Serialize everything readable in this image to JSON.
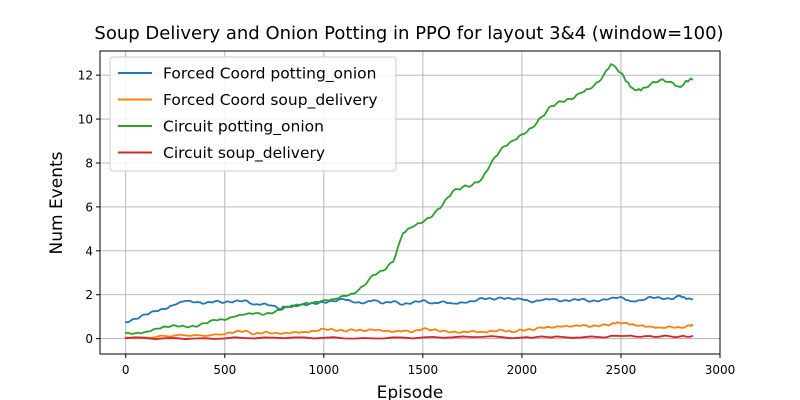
{
  "chart_data": {
    "type": "line",
    "title": "Soup Delivery and Onion Potting in PPO for layout 3&4 (window=100)",
    "xlabel": "Episode",
    "ylabel": "Num Events",
    "xlim": [
      -130,
      3000
    ],
    "ylim": [
      -0.7,
      13.1
    ],
    "xticks": [
      0,
      500,
      1000,
      1500,
      2000,
      2500,
      3000
    ],
    "yticks": [
      0,
      2,
      4,
      6,
      8,
      10,
      12
    ],
    "grid": true,
    "legend_position": "top-left",
    "series": [
      {
        "name": "Forced Coord potting_onion",
        "color": "#1f77b4",
        "points": [
          [
            0,
            0.75
          ],
          [
            50,
            0.9
          ],
          [
            100,
            1.1
          ],
          [
            150,
            1.25
          ],
          [
            200,
            1.35
          ],
          [
            250,
            1.55
          ],
          [
            300,
            1.72
          ],
          [
            350,
            1.65
          ],
          [
            400,
            1.6
          ],
          [
            450,
            1.7
          ],
          [
            500,
            1.65
          ],
          [
            550,
            1.7
          ],
          [
            600,
            1.75
          ],
          [
            650,
            1.55
          ],
          [
            700,
            1.6
          ],
          [
            740,
            1.5
          ],
          [
            780,
            1.35
          ],
          [
            800,
            1.45
          ],
          [
            850,
            1.5
          ],
          [
            900,
            1.55
          ],
          [
            950,
            1.6
          ],
          [
            1000,
            1.65
          ],
          [
            1050,
            1.7
          ],
          [
            1100,
            1.8
          ],
          [
            1150,
            1.65
          ],
          [
            1200,
            1.6
          ],
          [
            1250,
            1.75
          ],
          [
            1300,
            1.6
          ],
          [
            1350,
            1.7
          ],
          [
            1400,
            1.55
          ],
          [
            1450,
            1.65
          ],
          [
            1500,
            1.75
          ],
          [
            1550,
            1.6
          ],
          [
            1600,
            1.7
          ],
          [
            1650,
            1.6
          ],
          [
            1700,
            1.65
          ],
          [
            1750,
            1.7
          ],
          [
            1800,
            1.85
          ],
          [
            1850,
            1.8
          ],
          [
            1900,
            1.85
          ],
          [
            1950,
            1.8
          ],
          [
            2000,
            1.8
          ],
          [
            2050,
            1.65
          ],
          [
            2100,
            1.75
          ],
          [
            2150,
            1.8
          ],
          [
            2200,
            1.7
          ],
          [
            2250,
            1.75
          ],
          [
            2300,
            1.8
          ],
          [
            2350,
            1.7
          ],
          [
            2400,
            1.75
          ],
          [
            2450,
            1.85
          ],
          [
            2500,
            1.9
          ],
          [
            2550,
            1.7
          ],
          [
            2600,
            1.75
          ],
          [
            2650,
            1.9
          ],
          [
            2700,
            1.85
          ],
          [
            2750,
            1.8
          ],
          [
            2800,
            1.95
          ],
          [
            2830,
            1.8
          ],
          [
            2860,
            1.8
          ]
        ]
      },
      {
        "name": "Forced Coord soup_delivery",
        "color": "#ff7f0e",
        "points": [
          [
            0,
            0.05
          ],
          [
            100,
            0.05
          ],
          [
            200,
            0.12
          ],
          [
            300,
            0.15
          ],
          [
            400,
            0.12
          ],
          [
            500,
            0.2
          ],
          [
            550,
            0.3
          ],
          [
            600,
            0.35
          ],
          [
            650,
            0.2
          ],
          [
            700,
            0.3
          ],
          [
            750,
            0.25
          ],
          [
            800,
            0.25
          ],
          [
            850,
            0.3
          ],
          [
            900,
            0.3
          ],
          [
            950,
            0.35
          ],
          [
            1000,
            0.45
          ],
          [
            1050,
            0.4
          ],
          [
            1100,
            0.35
          ],
          [
            1150,
            0.4
          ],
          [
            1200,
            0.35
          ],
          [
            1250,
            0.4
          ],
          [
            1300,
            0.35
          ],
          [
            1350,
            0.3
          ],
          [
            1400,
            0.35
          ],
          [
            1450,
            0.3
          ],
          [
            1500,
            0.45
          ],
          [
            1550,
            0.4
          ],
          [
            1600,
            0.35
          ],
          [
            1650,
            0.3
          ],
          [
            1700,
            0.3
          ],
          [
            1750,
            0.35
          ],
          [
            1800,
            0.3
          ],
          [
            1850,
            0.35
          ],
          [
            1900,
            0.4
          ],
          [
            1950,
            0.3
          ],
          [
            2000,
            0.4
          ],
          [
            2050,
            0.4
          ],
          [
            2100,
            0.5
          ],
          [
            2150,
            0.5
          ],
          [
            2200,
            0.55
          ],
          [
            2250,
            0.55
          ],
          [
            2300,
            0.6
          ],
          [
            2350,
            0.55
          ],
          [
            2400,
            0.6
          ],
          [
            2450,
            0.65
          ],
          [
            2480,
            0.75
          ],
          [
            2520,
            0.7
          ],
          [
            2550,
            0.65
          ],
          [
            2600,
            0.6
          ],
          [
            2650,
            0.55
          ],
          [
            2700,
            0.5
          ],
          [
            2750,
            0.55
          ],
          [
            2800,
            0.5
          ],
          [
            2850,
            0.6
          ],
          [
            2860,
            0.6
          ]
        ]
      },
      {
        "name": "Circuit potting_onion",
        "color": "#2ca02c",
        "points": [
          [
            0,
            0.25
          ],
          [
            50,
            0.25
          ],
          [
            100,
            0.3
          ],
          [
            150,
            0.45
          ],
          [
            200,
            0.55
          ],
          [
            250,
            0.6
          ],
          [
            300,
            0.55
          ],
          [
            350,
            0.55
          ],
          [
            400,
            0.7
          ],
          [
            450,
            0.85
          ],
          [
            500,
            0.85
          ],
          [
            550,
            1.0
          ],
          [
            600,
            1.1
          ],
          [
            650,
            1.15
          ],
          [
            700,
            1.1
          ],
          [
            750,
            1.2
          ],
          [
            800,
            1.4
          ],
          [
            850,
            1.5
          ],
          [
            900,
            1.6
          ],
          [
            950,
            1.65
          ],
          [
            1000,
            1.75
          ],
          [
            1050,
            1.8
          ],
          [
            1100,
            1.95
          ],
          [
            1150,
            2.05
          ],
          [
            1200,
            2.4
          ],
          [
            1250,
            2.9
          ],
          [
            1300,
            3.1
          ],
          [
            1350,
            3.5
          ],
          [
            1400,
            4.8
          ],
          [
            1450,
            5.1
          ],
          [
            1500,
            5.3
          ],
          [
            1550,
            5.6
          ],
          [
            1600,
            6.1
          ],
          [
            1650,
            6.7
          ],
          [
            1700,
            6.9
          ],
          [
            1750,
            7.0
          ],
          [
            1800,
            7.3
          ],
          [
            1850,
            8.1
          ],
          [
            1900,
            8.7
          ],
          [
            1950,
            9.0
          ],
          [
            2000,
            9.3
          ],
          [
            2050,
            9.6
          ],
          [
            2100,
            10.1
          ],
          [
            2150,
            10.6
          ],
          [
            2200,
            10.8
          ],
          [
            2250,
            10.9
          ],
          [
            2300,
            11.2
          ],
          [
            2350,
            11.4
          ],
          [
            2400,
            11.8
          ],
          [
            2450,
            12.5
          ],
          [
            2500,
            12.1
          ],
          [
            2530,
            11.7
          ],
          [
            2560,
            11.4
          ],
          [
            2600,
            11.3
          ],
          [
            2650,
            11.6
          ],
          [
            2700,
            11.8
          ],
          [
            2750,
            11.7
          ],
          [
            2800,
            11.45
          ],
          [
            2830,
            11.75
          ],
          [
            2860,
            11.8
          ]
        ]
      },
      {
        "name": "Circuit soup_delivery",
        "color": "#d62728",
        "points": [
          [
            0,
            0.02
          ],
          [
            200,
            0.02
          ],
          [
            400,
            0.02
          ],
          [
            600,
            0.03
          ],
          [
            800,
            0.02
          ],
          [
            1000,
            0.04
          ],
          [
            1200,
            0.03
          ],
          [
            1400,
            0.05
          ],
          [
            1600,
            0.04
          ],
          [
            1800,
            0.08
          ],
          [
            2000,
            0.05
          ],
          [
            2100,
            0.1
          ],
          [
            2200,
            0.08
          ],
          [
            2400,
            0.06
          ],
          [
            2500,
            0.12
          ],
          [
            2600,
            0.08
          ],
          [
            2700,
            0.1
          ],
          [
            2800,
            0.1
          ],
          [
            2860,
            0.12
          ]
        ]
      }
    ]
  }
}
